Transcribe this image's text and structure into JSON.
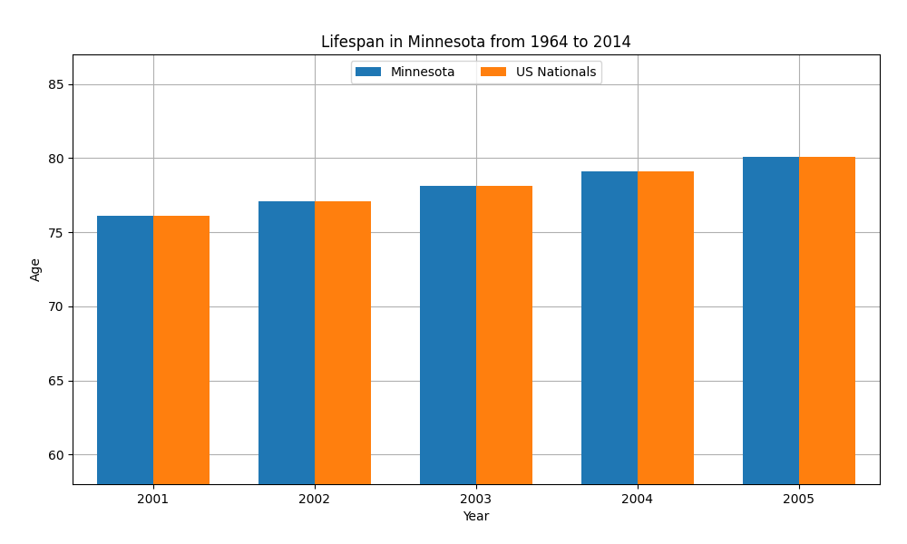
{
  "chart_data": {
    "type": "bar",
    "title": "Lifespan in Minnesota from 1964 to 2014",
    "xlabel": "Year",
    "ylabel": "Age",
    "categories": [
      "2001",
      "2002",
      "2003",
      "2004",
      "2005"
    ],
    "series": [
      {
        "name": "Minnesota",
        "values": [
          76.1,
          77.1,
          78.1,
          79.1,
          80.1
        ]
      },
      {
        "name": "US Nationals",
        "values": [
          76.1,
          77.1,
          78.1,
          79.1,
          80.1
        ]
      }
    ],
    "ylim": [
      58,
      87
    ],
    "yticks": [
      60,
      65,
      70,
      75,
      80,
      85
    ],
    "grid": true,
    "legend": "upper center"
  }
}
